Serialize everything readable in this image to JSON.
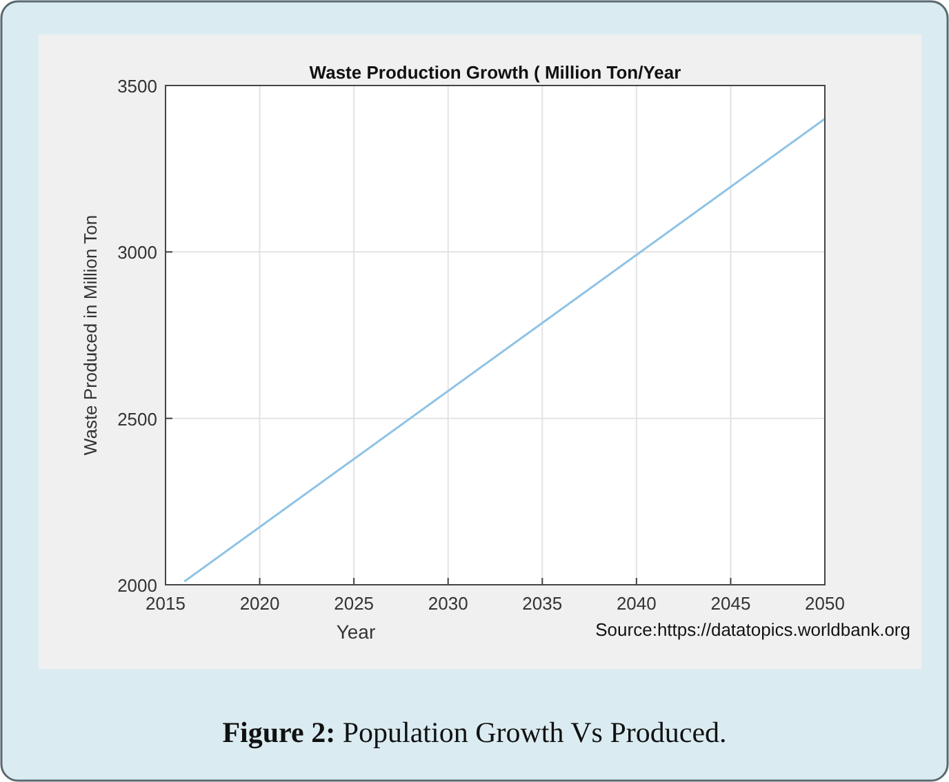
{
  "chart_data": {
    "type": "line",
    "title": "Waste Production Growth ( Million Ton/Year",
    "xlabel": "Year",
    "ylabel": "Waste Produced in Million Ton",
    "x": [
      2016,
      2050
    ],
    "series": [
      {
        "color": "#8fc3e6",
        "values": [
          2010,
          3400
        ]
      }
    ],
    "xlim": [
      2015,
      2050
    ],
    "xticks": [
      2015,
      2020,
      2025,
      2030,
      2035,
      2040,
      2045,
      2050
    ],
    "ylim": [
      2000,
      3500
    ],
    "yticks": [
      2000,
      2500,
      3000,
      3500
    ],
    "grid": true,
    "marker": "none",
    "line_style": "solid",
    "annotations": [
      "Source:https://datatopics.worldbank.org",
      "Figure 2: Population Growth Vs Produced."
    ]
  }
}
